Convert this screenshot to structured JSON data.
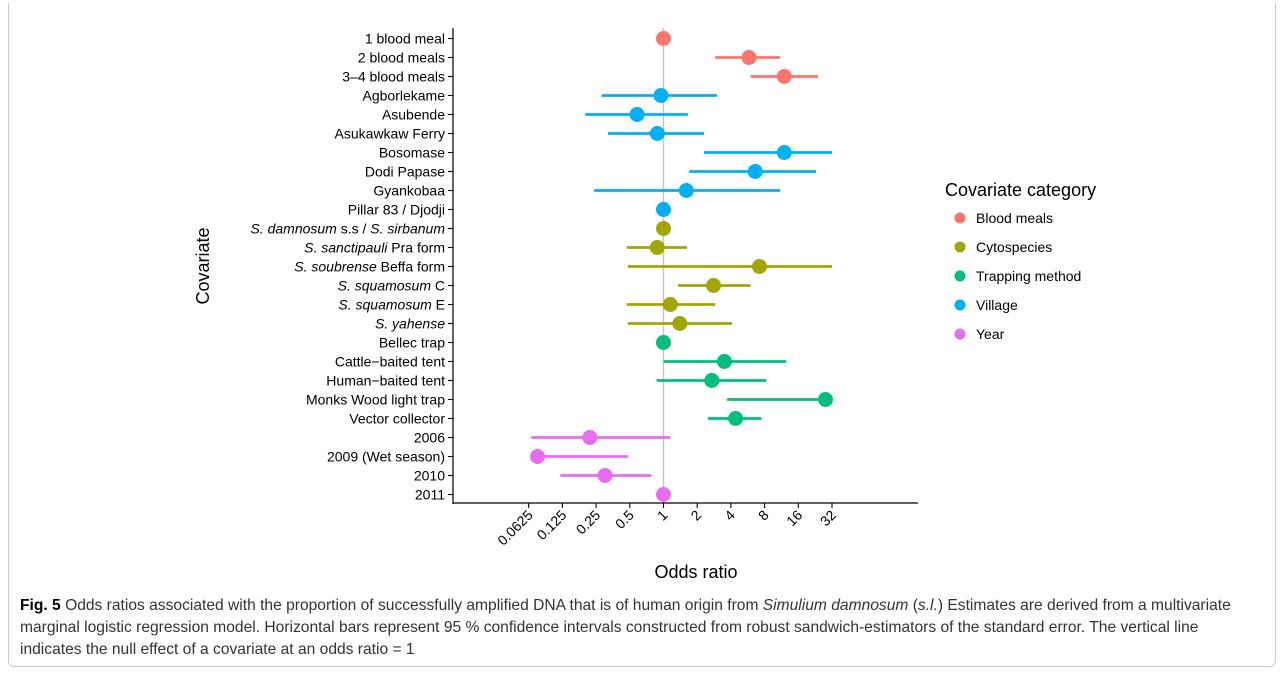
{
  "chart_data": {
    "type": "scatter",
    "subtype": "forest-plot",
    "xlabel": "Odds ratio",
    "ylabel": "Covariate",
    "x_scale": "log2",
    "xlim": [
      0.05,
      40
    ],
    "x_ticks": [
      "0.0625",
      "0.125",
      "0.25",
      "0.5",
      "1",
      "2",
      "4",
      "8",
      "16",
      "32"
    ],
    "x_tick_values": [
      0.0625,
      0.125,
      0.25,
      0.5,
      1,
      2,
      4,
      8,
      16,
      32
    ],
    "reference_line": 1,
    "legend": {
      "title": "Covariate category",
      "placement": "right",
      "entries": [
        {
          "name": "Blood meals",
          "color": "#F8766D"
        },
        {
          "name": "Cytospecies",
          "color": "#A3A500"
        },
        {
          "name": "Trapping method",
          "color": "#00BF7D"
        },
        {
          "name": "Village",
          "color": "#00B0F6"
        },
        {
          "name": "Year",
          "color": "#E76BF3"
        }
      ]
    },
    "points": [
      {
        "label": [
          {
            "t": "1 blood meal",
            "i": false
          }
        ],
        "category": "Blood meals",
        "or": 1.0,
        "lo": null,
        "hi": null
      },
      {
        "label": [
          {
            "t": "2 blood meals",
            "i": false
          }
        ],
        "category": "Blood meals",
        "or": 5.8,
        "lo": 2.9,
        "hi": 11.0
      },
      {
        "label": [
          {
            "t": "3–4 blood meals",
            "i": false
          }
        ],
        "category": "Blood meals",
        "or": 12.0,
        "lo": 6.0,
        "hi": 24.0
      },
      {
        "label": [
          {
            "t": "Agborlekame",
            "i": false
          }
        ],
        "category": "Village",
        "or": 0.95,
        "lo": 0.28,
        "hi": 3.0
      },
      {
        "label": [
          {
            "t": "Asubende",
            "i": false
          }
        ],
        "category": "Village",
        "or": 0.58,
        "lo": 0.2,
        "hi": 1.65
      },
      {
        "label": [
          {
            "t": "Asukawkaw Ferry",
            "i": false
          }
        ],
        "category": "Village",
        "or": 0.88,
        "lo": 0.32,
        "hi": 2.3
      },
      {
        "label": [
          {
            "t": "Bosomase",
            "i": false
          }
        ],
        "category": "Village",
        "or": 12.0,
        "lo": 2.3,
        "hi": 32.0
      },
      {
        "label": [
          {
            "t": "Dodi Papase",
            "i": false
          }
        ],
        "category": "Village",
        "or": 6.6,
        "lo": 1.7,
        "hi": 23.0
      },
      {
        "label": [
          {
            "t": "Gyankobaa",
            "i": false
          }
        ],
        "category": "Village",
        "or": 1.6,
        "lo": 0.24,
        "hi": 11.0
      },
      {
        "label": [
          {
            "t": "Pillar 83 / Djodji",
            "i": false
          }
        ],
        "category": "Village",
        "or": 1.0,
        "lo": null,
        "hi": null
      },
      {
        "label": [
          {
            "t": "S. damnosum",
            "i": true
          },
          {
            "t": " s.s / ",
            "i": false
          },
          {
            "t": "S. sirbanum",
            "i": true
          }
        ],
        "category": "Cytospecies",
        "or": 1.0,
        "lo": null,
        "hi": null
      },
      {
        "label": [
          {
            "t": "S. sanctipauli",
            "i": true
          },
          {
            "t": " Pra form",
            "i": false
          }
        ],
        "category": "Cytospecies",
        "or": 0.88,
        "lo": 0.47,
        "hi": 1.62
      },
      {
        "label": [
          {
            "t": "S. soubrense",
            "i": true
          },
          {
            "t": " Beffa form",
            "i": false
          }
        ],
        "category": "Cytospecies",
        "or": 7.2,
        "lo": 0.48,
        "hi": 32.0
      },
      {
        "label": [
          {
            "t": "S. squamosum",
            "i": true
          },
          {
            "t": " C",
            "i": false
          }
        ],
        "category": "Cytospecies",
        "or": 2.8,
        "lo": 1.35,
        "hi": 6.0
      },
      {
        "label": [
          {
            "t": "S. squamosum",
            "i": true
          },
          {
            "t": " E",
            "i": false
          }
        ],
        "category": "Cytospecies",
        "or": 1.15,
        "lo": 0.47,
        "hi": 2.9
      },
      {
        "label": [
          {
            "t": "S. yahense",
            "i": true
          }
        ],
        "category": "Cytospecies",
        "or": 1.4,
        "lo": 0.48,
        "hi": 4.1
      },
      {
        "label": [
          {
            "t": "Bellec trap",
            "i": false
          }
        ],
        "category": "Trapping method",
        "or": 1.0,
        "lo": null,
        "hi": null
      },
      {
        "label": [
          {
            "t": "Cattle−baited tent",
            "i": false
          }
        ],
        "category": "Trapping method",
        "or": 3.5,
        "lo": 1.0,
        "hi": 12.5
      },
      {
        "label": [
          {
            "t": "Human−baited tent",
            "i": false
          }
        ],
        "category": "Trapping method",
        "or": 2.7,
        "lo": 0.87,
        "hi": 8.3
      },
      {
        "label": [
          {
            "t": "Monks Wood light trap",
            "i": false
          }
        ],
        "category": "Trapping method",
        "or": 28.0,
        "lo": 3.7,
        "hi": 32.0
      },
      {
        "label": [
          {
            "t": "Vector collector",
            "i": false
          }
        ],
        "category": "Trapping method",
        "or": 4.4,
        "lo": 2.5,
        "hi": 7.5
      },
      {
        "label": [
          {
            "t": "2006",
            "i": false
          }
        ],
        "category": "Year",
        "or": 0.22,
        "lo": 0.066,
        "hi": 1.15
      },
      {
        "label": [
          {
            "t": "2009 (Wet season)",
            "i": false
          }
        ],
        "category": "Year",
        "or": 0.075,
        "lo": 0.066,
        "hi": 0.48
      },
      {
        "label": [
          {
            "t": "2010",
            "i": false
          }
        ],
        "category": "Year",
        "or": 0.3,
        "lo": 0.12,
        "hi": 0.78
      },
      {
        "label": [
          {
            "t": "2011",
            "i": false
          }
        ],
        "category": "Year",
        "or": 1.0,
        "lo": null,
        "hi": null
      }
    ]
  },
  "caption": {
    "fig_label": "Fig. 5",
    "parts": [
      {
        "t": " Odds ratios associated with the proportion of successfully amplified DNA that is of human origin from ",
        "i": false
      },
      {
        "t": "Simulium damnosum",
        "i": true
      },
      {
        "t": " (",
        "i": false
      },
      {
        "t": "s.l.",
        "i": true
      },
      {
        "t": ") Estimates are derived from a multivariate marginal logistic regression model. Horizontal bars represent 95 % confidence intervals constructed from robust sandwich-estimators of the standard error. The vertical line indicates the null effect of a covariate at an odds ratio = 1",
        "i": false
      }
    ]
  }
}
